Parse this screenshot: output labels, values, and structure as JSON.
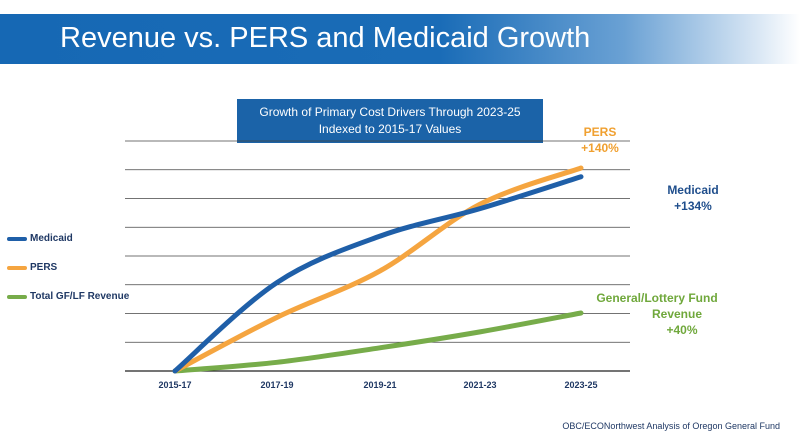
{
  "header": {
    "title": "Revenue vs. PERS and Medicaid Growth"
  },
  "chart_data": {
    "type": "line",
    "title": "Growth of Primary Cost Drivers Through 2023-25",
    "subtitle": "Indexed to 2015-17 Values",
    "categories": [
      "2015-17",
      "2017-19",
      "2019-21",
      "2021-23",
      "2023-25"
    ],
    "ylim": [
      0,
      140
    ],
    "grid": true,
    "legend_position": "left",
    "series": [
      {
        "name": "Medicaid",
        "color": "#1f5fa8",
        "values": [
          0,
          61,
          93,
          112,
          134
        ]
      },
      {
        "name": "PERS",
        "color": "#f5a540",
        "values": [
          0,
          37,
          69,
          115,
          140
        ]
      },
      {
        "name": "Total GF/LF Revenue",
        "color": "#77ac4a",
        "values": [
          0,
          6,
          16,
          27,
          40
        ]
      }
    ],
    "annotations": [
      {
        "series": "PERS",
        "lines": [
          "PERS",
          "+140%"
        ]
      },
      {
        "series": "Medicaid",
        "lines": [
          "Medicaid",
          "+134%"
        ]
      },
      {
        "series": "Total GF/LF Revenue",
        "lines": [
          "General/Lottery Fund",
          "Revenue",
          "+40%"
        ]
      }
    ]
  },
  "source": "OBC/ECONorthwest Analysis of Oregon General Fund"
}
